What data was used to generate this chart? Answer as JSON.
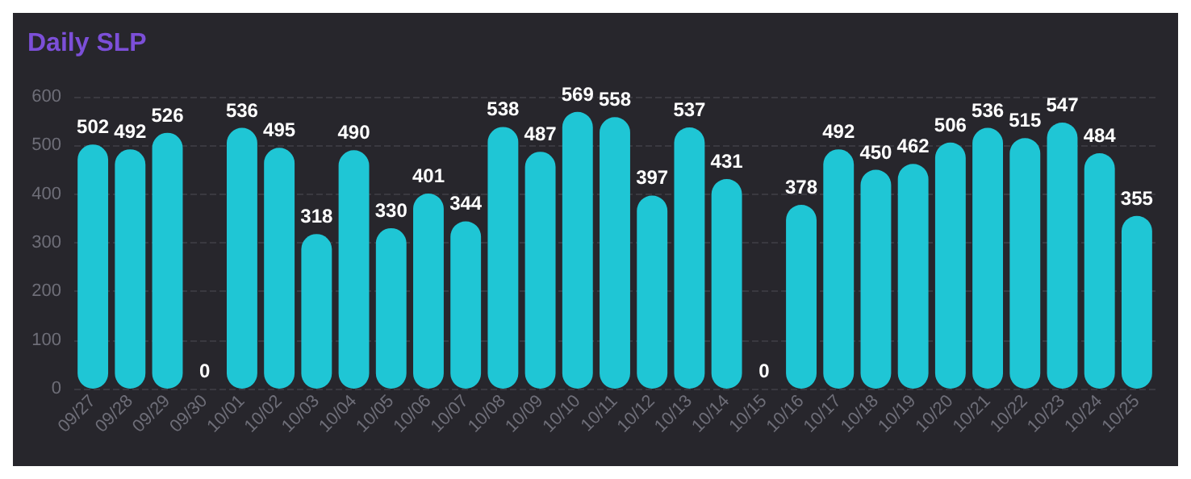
{
  "chart_data": {
    "type": "bar",
    "title": "Daily SLP",
    "categories": [
      "09/27",
      "09/28",
      "09/29",
      "09/30",
      "10/01",
      "10/02",
      "10/03",
      "10/04",
      "10/05",
      "10/06",
      "10/07",
      "10/08",
      "10/09",
      "10/10",
      "10/11",
      "10/12",
      "10/13",
      "10/14",
      "10/15",
      "10/16",
      "10/17",
      "10/18",
      "10/19",
      "10/20",
      "10/21",
      "10/22",
      "10/23",
      "10/24",
      "10/25"
    ],
    "values": [
      502,
      492,
      526,
      0,
      536,
      495,
      318,
      490,
      330,
      401,
      344,
      538,
      487,
      569,
      558,
      397,
      537,
      431,
      0,
      378,
      492,
      450,
      462,
      506,
      536,
      515,
      547,
      484,
      355
    ],
    "color": "#1fc6d5",
    "ylim": [
      0,
      600
    ],
    "yticks": [
      0,
      100,
      200,
      300,
      400,
      500,
      600
    ],
    "grid": "y",
    "data_labels": true
  }
}
